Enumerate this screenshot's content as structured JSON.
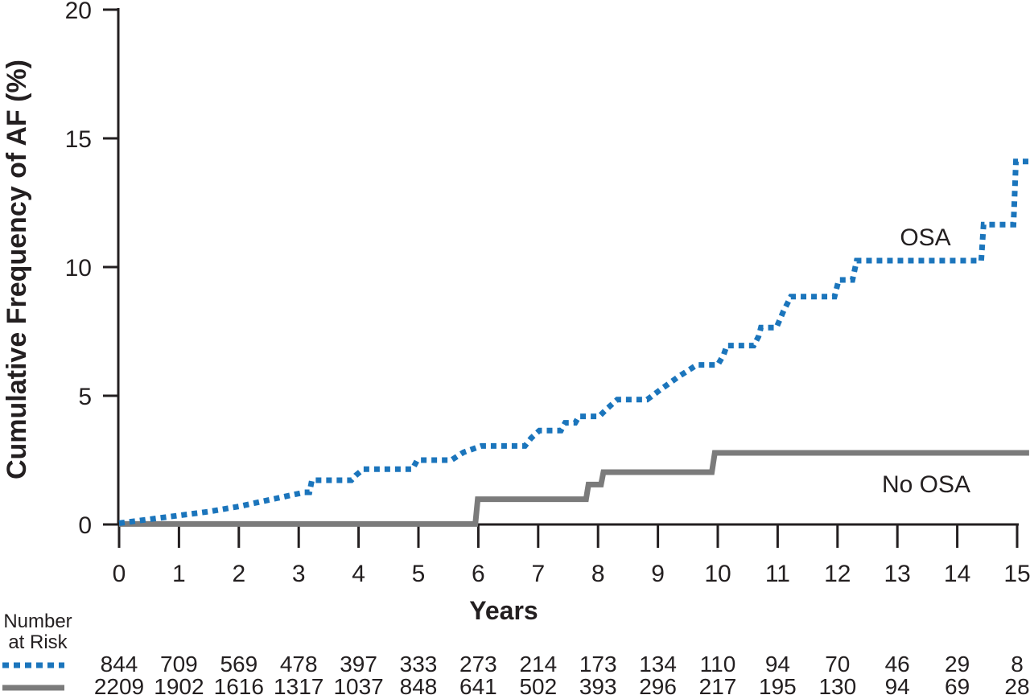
{
  "chart_data": {
    "type": "line",
    "subtype": "kaplan-meier-step",
    "title": "",
    "xlabel": "Years",
    "ylabel": "Cumulative Frequency of AF (%)",
    "xlim": [
      0,
      15
    ],
    "ylim": [
      0,
      20
    ],
    "x_ticks": [
      0,
      1,
      2,
      3,
      4,
      5,
      6,
      7,
      8,
      9,
      10,
      11,
      12,
      13,
      14,
      15
    ],
    "y_ticks": [
      0,
      5,
      10,
      15,
      20
    ],
    "grid": false,
    "legend_position": "curve-end-labels",
    "series": [
      {
        "name": "OSA",
        "style": "dotted",
        "color": "#1b75bc",
        "points": [
          [
            0,
            0.05
          ],
          [
            0.5,
            0.2
          ],
          [
            1,
            0.35
          ],
          [
            1.5,
            0.5
          ],
          [
            2,
            0.7
          ],
          [
            2.6,
            1.0
          ],
          [
            3.1,
            1.25
          ],
          [
            3.18,
            1.25
          ],
          [
            3.22,
            1.72
          ],
          [
            3.88,
            1.72
          ],
          [
            3.95,
            1.9
          ],
          [
            4.08,
            2.15
          ],
          [
            4.9,
            2.15
          ],
          [
            4.98,
            2.5
          ],
          [
            5.55,
            2.5
          ],
          [
            5.75,
            2.8
          ],
          [
            6.05,
            3.05
          ],
          [
            6.78,
            3.05
          ],
          [
            6.88,
            3.35
          ],
          [
            7.02,
            3.65
          ],
          [
            7.38,
            3.65
          ],
          [
            7.45,
            3.95
          ],
          [
            7.62,
            3.95
          ],
          [
            7.68,
            4.2
          ],
          [
            8.02,
            4.2
          ],
          [
            8.15,
            4.5
          ],
          [
            8.32,
            4.85
          ],
          [
            8.82,
            4.85
          ],
          [
            9.05,
            5.25
          ],
          [
            9.35,
            5.75
          ],
          [
            9.65,
            6.2
          ],
          [
            10.0,
            6.2
          ],
          [
            10.1,
            6.6
          ],
          [
            10.15,
            6.95
          ],
          [
            10.6,
            6.95
          ],
          [
            10.68,
            7.3
          ],
          [
            10.72,
            7.65
          ],
          [
            10.98,
            7.65
          ],
          [
            11.1,
            8.3
          ],
          [
            11.22,
            8.85
          ],
          [
            11.95,
            8.85
          ],
          [
            12.02,
            9.5
          ],
          [
            12.25,
            9.5
          ],
          [
            12.32,
            10.25
          ],
          [
            14.4,
            10.25
          ],
          [
            14.44,
            11.65
          ],
          [
            14.94,
            11.65
          ],
          [
            14.98,
            14.1
          ],
          [
            15.2,
            14.1
          ]
        ]
      },
      {
        "name": "No OSA",
        "style": "solid",
        "color": "#7b7b7b",
        "points": [
          [
            0,
            0.02
          ],
          [
            5.95,
            0.02
          ],
          [
            5.99,
            0.98
          ],
          [
            7.8,
            0.98
          ],
          [
            7.84,
            1.55
          ],
          [
            8.05,
            1.55
          ],
          [
            8.09,
            2.03
          ],
          [
            9.9,
            2.03
          ],
          [
            9.95,
            2.78
          ],
          [
            15.2,
            2.78
          ]
        ]
      }
    ],
    "curve_labels": {
      "osa": "OSA",
      "no_osa": "No OSA"
    },
    "axis_color": "#231f20"
  },
  "risk_table": {
    "header_line1": "Number",
    "header_line2": "at Risk",
    "rows": [
      {
        "name": "OSA",
        "swatch": "dotted-blue",
        "color": "#1b75bc",
        "values": [
          844,
          709,
          569,
          478,
          397,
          333,
          273,
          214,
          173,
          134,
          110,
          94,
          70,
          46,
          29,
          8
        ]
      },
      {
        "name": "No OSA",
        "swatch": "solid-gray",
        "color": "#7b7b7b",
        "values": [
          2209,
          1902,
          1616,
          1317,
          1037,
          848,
          641,
          502,
          393,
          296,
          217,
          195,
          130,
          94,
          69,
          28
        ]
      }
    ]
  }
}
